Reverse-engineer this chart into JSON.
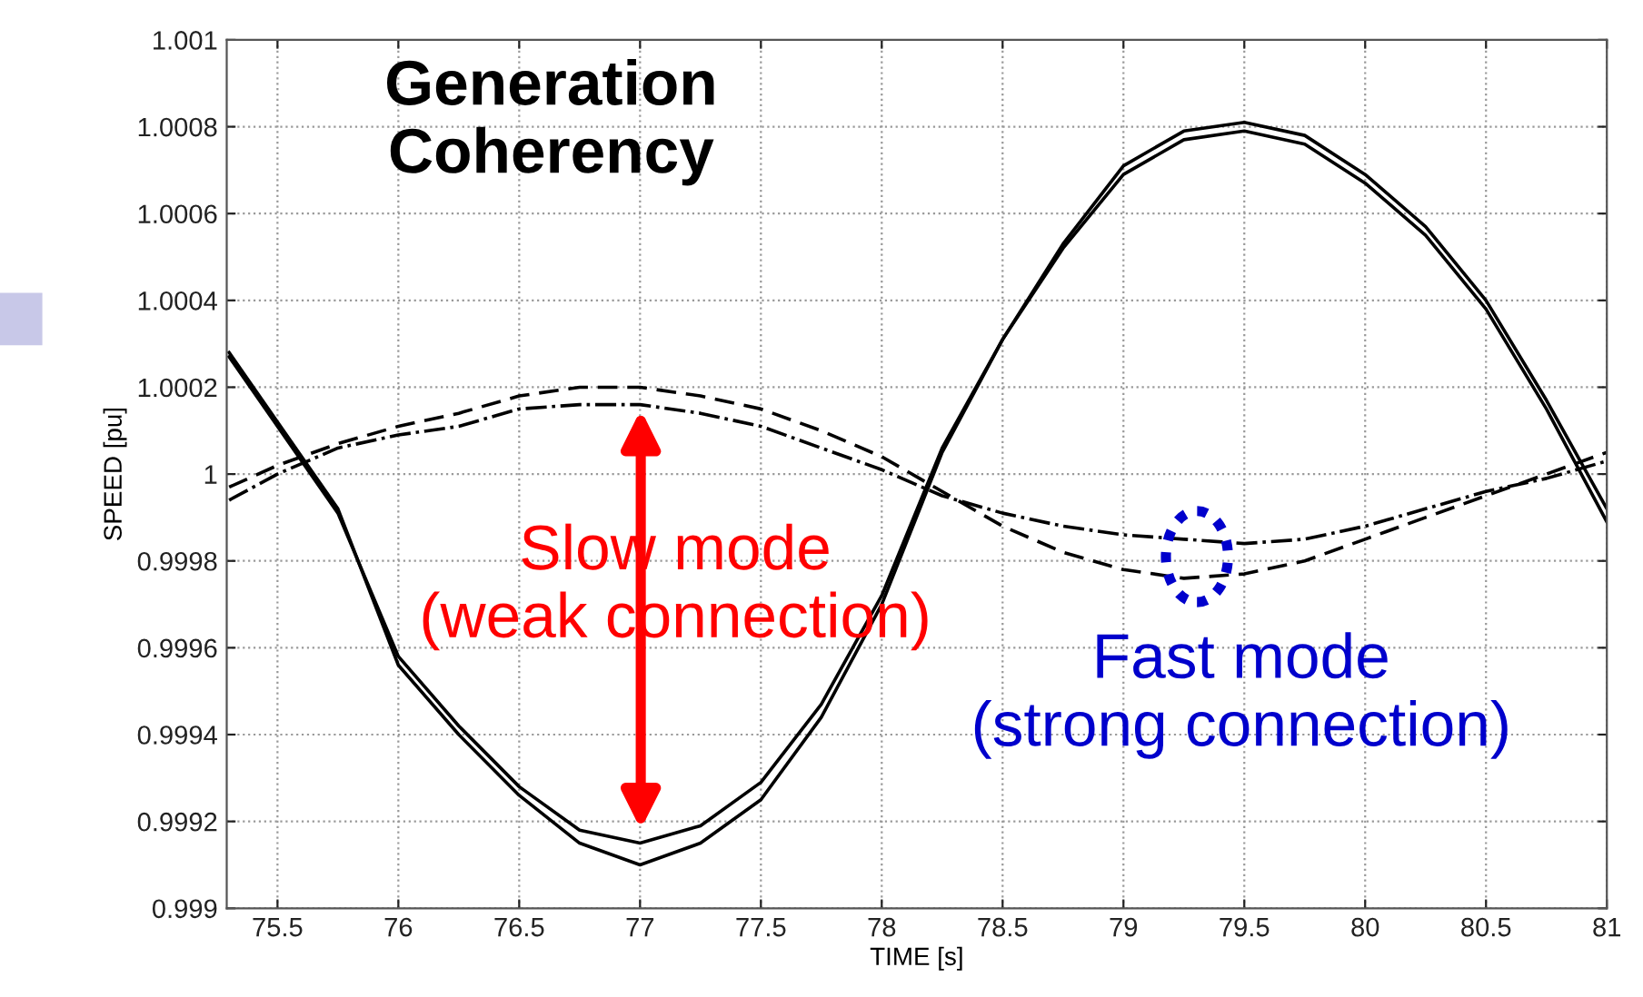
{
  "chart_data": {
    "type": "line",
    "xlabel": "TIME [s]",
    "ylabel": "SPEED [pu]",
    "xlim": [
      75.29,
      81
    ],
    "xticks": [
      75.5,
      76,
      76.5,
      77,
      77.5,
      78,
      78.5,
      79,
      79.5,
      80,
      80.5,
      81
    ],
    "ylim": [
      0.999,
      1.001
    ],
    "yticks": [
      0.999,
      0.9992,
      0.9994,
      0.9996,
      0.9998,
      1,
      1.0002,
      1.0004,
      1.0006,
      1.0008,
      1.001
    ],
    "grid": true,
    "marker": "none",
    "x": [
      75.3,
      75.5,
      75.75,
      76,
      76.25,
      76.5,
      76.75,
      77,
      77.25,
      77.5,
      77.75,
      78,
      78.25,
      78.5,
      78.75,
      79,
      79.25,
      79.5,
      79.75,
      80,
      80.25,
      80.5,
      80.75,
      81
    ],
    "series": [
      {
        "color": "#000000",
        "line_style": "solid",
        "values": [
          1.00028,
          1.00012,
          0.99992,
          0.99956,
          0.9994,
          0.99926,
          0.99915,
          0.9991,
          0.99915,
          0.99925,
          0.99944,
          0.9997,
          1.00005,
          1.00031,
          1.00053,
          1.00071,
          1.00079,
          1.00081,
          1.00078,
          1.00069,
          1.00057,
          1.0004,
          1.00017,
          0.99992
        ]
      },
      {
        "color": "#000000",
        "line_style": "solid",
        "values": [
          1.00027,
          1.00011,
          0.99991,
          0.99958,
          0.99942,
          0.99928,
          0.99918,
          0.99915,
          0.99919,
          0.99929,
          0.99947,
          0.99972,
          1.00006,
          1.00031,
          1.00052,
          1.00069,
          1.00077,
          1.00079,
          1.00076,
          1.00067,
          1.00055,
          1.00038,
          1.00015,
          0.99989
        ]
      },
      {
        "color": "#000000",
        "line_style": "dashed",
        "values": [
          0.99997,
          1.00002,
          1.00007,
          1.00011,
          1.00014,
          1.00018,
          1.0002,
          1.0002,
          1.00018,
          1.00015,
          1.0001,
          1.00004,
          0.99996,
          0.99988,
          0.99982,
          0.99978,
          0.99976,
          0.99977,
          0.9998,
          0.99985,
          0.9999,
          0.99995,
          1.0,
          1.00005
        ]
      },
      {
        "color": "#000000",
        "line_style": "dashdot",
        "values": [
          0.99994,
          1.0,
          1.00006,
          1.00009,
          1.00011,
          1.00015,
          1.00016,
          1.00016,
          1.00014,
          1.00011,
          1.00006,
          1.00001,
          0.99995,
          0.99991,
          0.99988,
          0.99986,
          0.99985,
          0.99984,
          0.99985,
          0.99988,
          0.99992,
          0.99996,
          0.99999,
          1.00003
        ]
      }
    ],
    "annotations": [
      {
        "text": "Generation\nCoherency"
      },
      "Slow mode\n(weak connection)",
      "Fast mode\n(strong connection)"
    ]
  }
}
